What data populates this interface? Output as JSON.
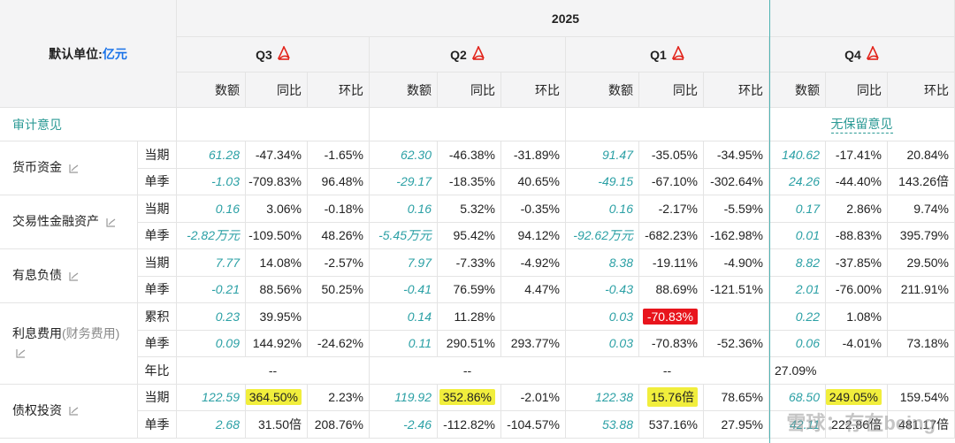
{
  "header": {
    "unit_label": "默认单位:",
    "unit_value": "亿元",
    "year": "2025",
    "quarters": [
      "Q3",
      "Q2",
      "Q1",
      "Q4"
    ],
    "sub_cols": [
      "数额",
      "同比",
      "环比"
    ]
  },
  "audit": {
    "label": "审计意见",
    "q4_value": "无保留意见"
  },
  "rows": {
    "cash": {
      "label": "货币资金",
      "period_label": "当期",
      "season_label": "单季",
      "period": [
        [
          "61.28",
          "-47.34%",
          "-1.65%"
        ],
        [
          "62.30",
          "-46.38%",
          "-31.89%"
        ],
        [
          "91.47",
          "-35.05%",
          "-34.95%"
        ],
        [
          "140.62",
          "-17.41%",
          "20.84%"
        ]
      ],
      "season": [
        [
          "-1.03",
          "-709.83%",
          "96.48%"
        ],
        [
          "-29.17",
          "-18.35%",
          "40.65%"
        ],
        [
          "-49.15",
          "-67.10%",
          "-302.64%"
        ],
        [
          "24.26",
          "-44.40%",
          "143.26倍"
        ]
      ]
    },
    "trading": {
      "label": "交易性金融资产",
      "period_label": "当期",
      "season_label": "单季",
      "period": [
        [
          "0.16",
          "3.06%",
          "-0.18%"
        ],
        [
          "0.16",
          "5.32%",
          "-0.35%"
        ],
        [
          "0.16",
          "-2.17%",
          "-5.59%"
        ],
        [
          "0.17",
          "2.86%",
          "9.74%"
        ]
      ],
      "season": [
        [
          "-2.82万元",
          "-109.50%",
          "48.26%"
        ],
        [
          "-5.45万元",
          "95.42%",
          "94.12%"
        ],
        [
          "-92.62万元",
          "-682.23%",
          "-162.98%"
        ],
        [
          "0.01",
          "-88.83%",
          "395.79%"
        ]
      ]
    },
    "debt": {
      "label": "有息负债",
      "period_label": "当期",
      "season_label": "单季",
      "period": [
        [
          "7.77",
          "14.08%",
          "-2.57%"
        ],
        [
          "7.97",
          "-7.33%",
          "-4.92%"
        ],
        [
          "8.38",
          "-19.11%",
          "-4.90%"
        ],
        [
          "8.82",
          "-37.85%",
          "29.50%"
        ]
      ],
      "season": [
        [
          "-0.21",
          "88.56%",
          "50.25%"
        ],
        [
          "-0.41",
          "76.59%",
          "4.47%"
        ],
        [
          "-0.43",
          "88.69%",
          "-121.51%"
        ],
        [
          "2.01",
          "-76.00%",
          "211.91%"
        ]
      ]
    },
    "interest": {
      "label": "利息费用",
      "label_sub": "(财务费用)",
      "cum_label": "累积",
      "season_label": "单季",
      "ratio_label": "年比",
      "cum": [
        [
          "0.23",
          "39.95%",
          ""
        ],
        [
          "0.14",
          "11.28%",
          ""
        ],
        [
          "0.03",
          "-70.83%",
          ""
        ],
        [
          "0.22",
          "1.08%",
          ""
        ]
      ],
      "season": [
        [
          "0.09",
          "144.92%",
          "-24.62%"
        ],
        [
          "0.11",
          "290.51%",
          "293.77%"
        ],
        [
          "0.03",
          "-70.83%",
          "-52.36%"
        ],
        [
          "0.06",
          "-4.01%",
          "73.18%"
        ]
      ],
      "ratio": [
        "--",
        "--",
        "--",
        "27.09%"
      ]
    },
    "bond": {
      "label": "债权投资",
      "period_label": "当期",
      "season_label": "单季",
      "period": [
        [
          "122.59",
          "364.50%",
          "2.23%"
        ],
        [
          "119.92",
          "352.86%",
          "-2.01%"
        ],
        [
          "122.38",
          "15.76倍",
          "78.65%"
        ],
        [
          "68.50",
          "249.05%",
          "159.54%"
        ]
      ],
      "season": [
        [
          "2.68",
          "31.50倍",
          "208.76%"
        ],
        [
          "-2.46",
          "-112.82%",
          "-104.57%"
        ],
        [
          "53.88",
          "537.16%",
          "27.95%"
        ],
        [
          "42.11",
          "222.86倍",
          "481.17倍"
        ]
      ]
    }
  },
  "watermark": "雪球：存在being",
  "colors": {
    "accent": "#2ba0a5",
    "highlight": "#f1ee3c",
    "negative_badge": "#e8141c",
    "link": "#1a73e8"
  }
}
